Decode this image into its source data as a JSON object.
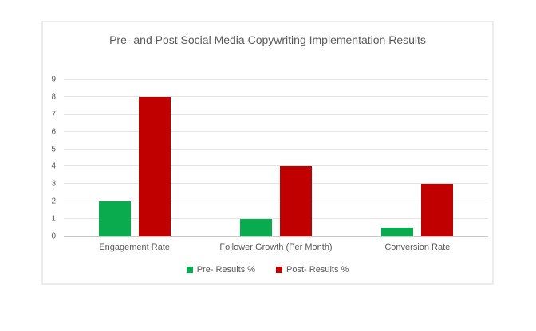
{
  "chart_data": {
    "type": "bar",
    "title": "Pre- and Post Social Media Copywriting Implementation Results",
    "categories": [
      "Engagement Rate",
      "Follower Growth (Per Month)",
      "Conversion Rate"
    ],
    "series": [
      {
        "name": "Pre- Results %",
        "color": "#0aab4f",
        "values": [
          2,
          1,
          0.5
        ]
      },
      {
        "name": "Post- Results %",
        "color": "#c00000",
        "values": [
          8,
          4,
          3
        ]
      }
    ],
    "xlabel": "",
    "ylabel": "",
    "ylim": [
      0,
      9
    ],
    "ytick_step": 1,
    "grid": true,
    "legend_position": "bottom",
    "colors": {
      "text": "#595959",
      "gridline": "#e3e3e3",
      "axis_line": "#c9c9c9",
      "chart_border": "#ececec",
      "background": "#ffffff"
    }
  }
}
